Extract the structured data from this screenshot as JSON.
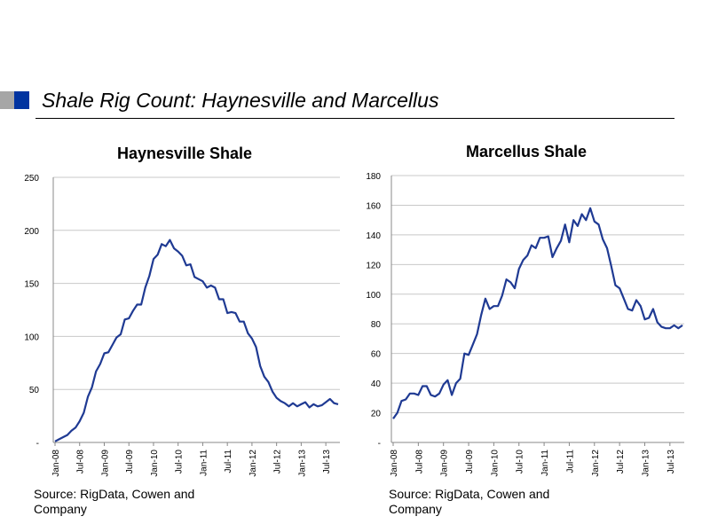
{
  "slide": {
    "title": "Shale Rig Count: Haynesville and Marcellus"
  },
  "colors": {
    "accent_blue": "#0033a0",
    "accent_gray": "#a6a6a6",
    "line": "#1f3a93",
    "grid": "#c8c8c8"
  },
  "chart_data": [
    {
      "type": "line",
      "title": "Haynesville Shale",
      "xlabel": "",
      "ylabel": "",
      "x_tick_labels": [
        "Jan-08",
        "Jul-08",
        "Jan-09",
        "Jul-09",
        "Jan-10",
        "Jul-10",
        "Jan-11",
        "Jul-11",
        "Jan-12",
        "Jul-12",
        "Jan-13",
        "Jul-13"
      ],
      "y_tick_labels": [
        "-",
        "50",
        "100",
        "150",
        "200",
        "250"
      ],
      "ylim": [
        0,
        250
      ],
      "grid": true,
      "x_start": "Jan-08",
      "x_unit": "month",
      "series": [
        {
          "values": [
            1,
            3,
            5,
            7,
            11,
            14,
            20,
            28,
            43,
            52,
            67,
            74,
            84,
            85,
            92,
            99,
            102,
            116,
            117,
            124,
            130,
            130,
            146,
            157,
            173,
            177,
            187,
            185,
            191,
            183,
            180,
            176,
            167,
            168,
            156,
            154,
            152,
            146,
            148,
            146,
            135,
            135,
            122,
            123,
            122,
            114,
            114,
            103,
            98,
            90,
            72,
            62,
            57,
            48,
            42,
            39,
            37,
            34,
            37,
            34,
            36,
            38,
            33,
            36,
            34,
            35,
            38,
            41,
            37,
            36
          ]
        }
      ],
      "source": "Source: RigData, Cowen and Company"
    },
    {
      "type": "line",
      "title": "Marcellus Shale",
      "xlabel": "",
      "ylabel": "",
      "x_tick_labels": [
        "Jan-08",
        "Jul-08",
        "Jan-09",
        "Jul-09",
        "Jan-10",
        "Jul-10",
        "Jan-11",
        "Jul-11",
        "Jan-12",
        "Jul-12",
        "Jan-13",
        "Jul-13"
      ],
      "y_tick_labels": [
        "-",
        "20",
        "40",
        "60",
        "80",
        "100",
        "120",
        "140",
        "160",
        "180"
      ],
      "ylim": [
        0,
        180
      ],
      "grid": true,
      "x_start": "Jan-08",
      "x_unit": "month",
      "series": [
        {
          "values": [
            16,
            20,
            28,
            29,
            33,
            33,
            32,
            38,
            38,
            32,
            31,
            33,
            39,
            42,
            32,
            40,
            43,
            60,
            59,
            66,
            73,
            86,
            97,
            90,
            92,
            92,
            99,
            110,
            108,
            104,
            117,
            123,
            126,
            133,
            131,
            138,
            138,
            139,
            125,
            131,
            136,
            147,
            135,
            150,
            146,
            154,
            150,
            158,
            149,
            147,
            137,
            131,
            119,
            106,
            104,
            97,
            90,
            89,
            96,
            92,
            83,
            84,
            90,
            81,
            78,
            77,
            77,
            79,
            77,
            79
          ]
        }
      ],
      "source": "Source: RigData, Cowen and Company"
    }
  ]
}
